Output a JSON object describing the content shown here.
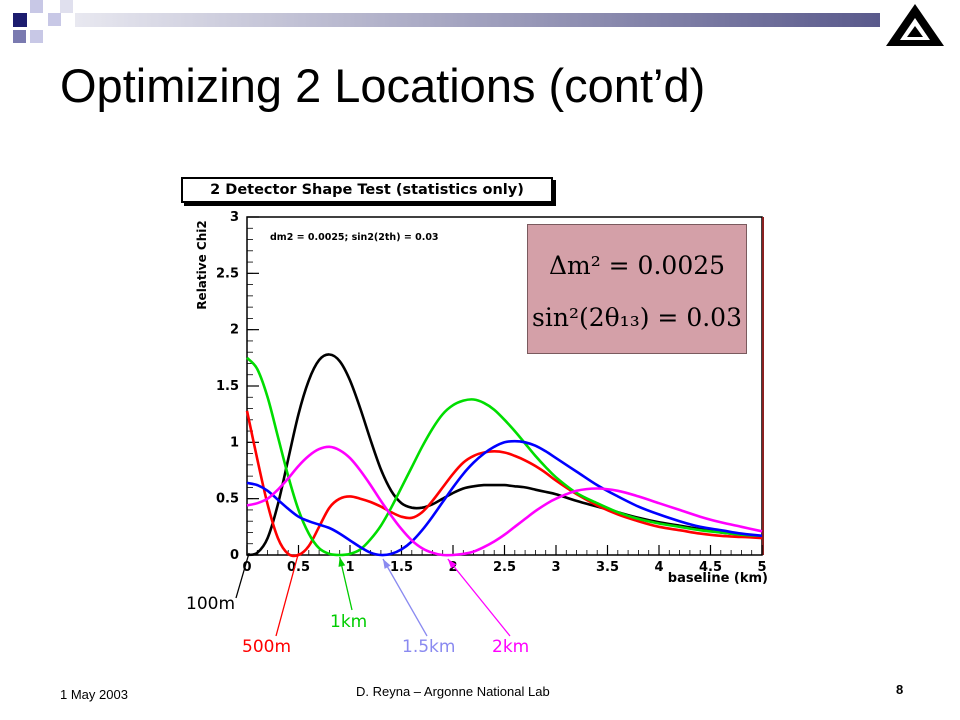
{
  "slide": {
    "title": "Optimizing 2 Locations (cont’d)",
    "footer_date": "1 May 2003",
    "footer_center": "D. Reyna – Argonne National Lab",
    "page_number": "8"
  },
  "colors": {
    "bullet_dark": "#1c1c6e",
    "bullet_light": "#c8c8e6",
    "header_bar_start": "#e8e8f0",
    "header_bar_end": "#5a5a8c",
    "formula_bg": "#d4a0a8"
  },
  "formula": {
    "line1": "Δm² = 0.0025",
    "line2": "sin²(2θ₁₃) = 0.03"
  },
  "annotations": [
    {
      "label": "100m",
      "color": "#000000"
    },
    {
      "label": "500m",
      "color": "#ff0000"
    },
    {
      "label": "1km",
      "color": "#00cc00"
    },
    {
      "label": "1.5km",
      "color": "#8a8af0"
    },
    {
      "label": "2km",
      "color": "#ff00ff"
    }
  ],
  "chart_data": {
    "type": "line",
    "title": "2 Detector Shape Test (statistics only)",
    "subtitle": "dm2 = 0.0025; sin2(2th) = 0.03",
    "xlabel": "baseline (km)",
    "ylabel": "Relative Chi2",
    "xlim": [
      0,
      5
    ],
    "ylim": [
      0,
      3
    ],
    "x_ticks": [
      "0",
      "0.5",
      "1",
      "1.5",
      "2",
      "2.5",
      "3",
      "3.5",
      "4",
      "4.5",
      "5"
    ],
    "y_ticks": [
      "0",
      "0.5",
      "1",
      "1.5",
      "2",
      "2.5",
      "3"
    ],
    "grid": false,
    "series": [
      {
        "name": "100m",
        "color": "#000000",
        "x": [
          0,
          0.1,
          0.2,
          0.3,
          0.4,
          0.5,
          0.6,
          0.7,
          0.8,
          0.9,
          1.0,
          1.1,
          1.2,
          1.3,
          1.4,
          1.5,
          1.6,
          1.7,
          1.8,
          1.9,
          2.0,
          2.1,
          2.2,
          2.3,
          2.4,
          2.5,
          2.6,
          2.7,
          2.8,
          2.9,
          3.0,
          3.2,
          3.4,
          3.6,
          3.8,
          4.0,
          4.2,
          4.4,
          4.6,
          4.8,
          5.0
        ],
        "y": [
          0.0,
          0.02,
          0.15,
          0.45,
          0.85,
          1.25,
          1.55,
          1.73,
          1.78,
          1.72,
          1.55,
          1.3,
          1.02,
          0.76,
          0.57,
          0.46,
          0.42,
          0.42,
          0.45,
          0.5,
          0.55,
          0.59,
          0.61,
          0.62,
          0.62,
          0.62,
          0.61,
          0.6,
          0.58,
          0.56,
          0.54,
          0.48,
          0.43,
          0.38,
          0.33,
          0.29,
          0.26,
          0.23,
          0.2,
          0.18,
          0.16
        ]
      },
      {
        "name": "500m",
        "color": "#ff0000",
        "x": [
          0,
          0.1,
          0.2,
          0.3,
          0.4,
          0.5,
          0.6,
          0.7,
          0.8,
          0.9,
          1.0,
          1.1,
          1.2,
          1.3,
          1.4,
          1.5,
          1.6,
          1.7,
          1.8,
          1.9,
          2.0,
          2.1,
          2.2,
          2.3,
          2.4,
          2.5,
          2.6,
          2.7,
          2.8,
          2.9,
          3.0,
          3.2,
          3.4,
          3.6,
          3.8,
          4.0,
          4.2,
          4.4,
          4.6,
          4.8,
          5.0
        ],
        "y": [
          1.28,
          0.85,
          0.45,
          0.15,
          0.01,
          0.0,
          0.08,
          0.25,
          0.42,
          0.5,
          0.52,
          0.5,
          0.47,
          0.43,
          0.38,
          0.34,
          0.33,
          0.38,
          0.48,
          0.6,
          0.72,
          0.82,
          0.88,
          0.91,
          0.92,
          0.91,
          0.88,
          0.84,
          0.79,
          0.73,
          0.66,
          0.54,
          0.44,
          0.36,
          0.3,
          0.25,
          0.22,
          0.19,
          0.17,
          0.16,
          0.15
        ]
      },
      {
        "name": "1km",
        "color": "#00dd00",
        "x": [
          0,
          0.1,
          0.2,
          0.3,
          0.4,
          0.5,
          0.6,
          0.7,
          0.8,
          0.9,
          1.0,
          1.1,
          1.2,
          1.3,
          1.4,
          1.5,
          1.6,
          1.7,
          1.8,
          1.9,
          2.0,
          2.1,
          2.2,
          2.3,
          2.4,
          2.5,
          2.6,
          2.7,
          2.8,
          2.9,
          3.0,
          3.2,
          3.4,
          3.6,
          3.8,
          4.0,
          4.2,
          4.4,
          4.6,
          4.8,
          5.0
        ],
        "y": [
          1.75,
          1.65,
          1.4,
          1.05,
          0.7,
          0.4,
          0.19,
          0.06,
          0.01,
          0.0,
          0.01,
          0.05,
          0.14,
          0.26,
          0.42,
          0.6,
          0.78,
          0.96,
          1.12,
          1.25,
          1.33,
          1.37,
          1.38,
          1.35,
          1.29,
          1.2,
          1.1,
          0.99,
          0.88,
          0.78,
          0.69,
          0.55,
          0.46,
          0.38,
          0.32,
          0.28,
          0.25,
          0.22,
          0.2,
          0.18,
          0.17
        ]
      },
      {
        "name": "1.5km",
        "color": "#0000ff",
        "x": [
          0,
          0.1,
          0.2,
          0.3,
          0.4,
          0.5,
          0.6,
          0.7,
          0.8,
          0.9,
          1.0,
          1.1,
          1.2,
          1.3,
          1.4,
          1.5,
          1.6,
          1.7,
          1.8,
          1.9,
          2.0,
          2.1,
          2.2,
          2.3,
          2.4,
          2.5,
          2.6,
          2.7,
          2.8,
          2.9,
          3.0,
          3.2,
          3.4,
          3.6,
          3.8,
          4.0,
          4.2,
          4.4,
          4.6,
          4.8,
          5.0
        ],
        "y": [
          0.64,
          0.62,
          0.57,
          0.49,
          0.41,
          0.34,
          0.3,
          0.27,
          0.24,
          0.19,
          0.13,
          0.07,
          0.02,
          0.0,
          0.01,
          0.05,
          0.12,
          0.22,
          0.34,
          0.47,
          0.6,
          0.72,
          0.82,
          0.9,
          0.96,
          1.0,
          1.01,
          1.0,
          0.97,
          0.92,
          0.86,
          0.74,
          0.62,
          0.52,
          0.43,
          0.36,
          0.3,
          0.25,
          0.22,
          0.19,
          0.17
        ]
      },
      {
        "name": "2km",
        "color": "#ff00ff",
        "x": [
          0,
          0.1,
          0.2,
          0.3,
          0.4,
          0.5,
          0.6,
          0.7,
          0.8,
          0.9,
          1.0,
          1.1,
          1.2,
          1.3,
          1.4,
          1.5,
          1.6,
          1.7,
          1.8,
          1.9,
          2.0,
          2.1,
          2.2,
          2.3,
          2.4,
          2.5,
          2.6,
          2.7,
          2.8,
          2.9,
          3.0,
          3.2,
          3.4,
          3.6,
          3.8,
          4.0,
          4.2,
          4.4,
          4.6,
          4.8,
          5.0
        ],
        "y": [
          0.44,
          0.46,
          0.5,
          0.58,
          0.68,
          0.79,
          0.88,
          0.94,
          0.96,
          0.93,
          0.86,
          0.75,
          0.62,
          0.48,
          0.35,
          0.23,
          0.13,
          0.06,
          0.02,
          0.0,
          0.0,
          0.01,
          0.03,
          0.07,
          0.12,
          0.18,
          0.25,
          0.32,
          0.39,
          0.45,
          0.5,
          0.57,
          0.59,
          0.57,
          0.52,
          0.46,
          0.4,
          0.34,
          0.29,
          0.25,
          0.21
        ]
      }
    ]
  }
}
